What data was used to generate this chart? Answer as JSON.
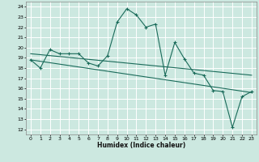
{
  "xlabel": "Humidex (Indice chaleur)",
  "xlim": [
    -0.5,
    23.5
  ],
  "ylim": [
    11.5,
    24.5
  ],
  "yticks": [
    12,
    13,
    14,
    15,
    16,
    17,
    18,
    19,
    20,
    21,
    22,
    23,
    24
  ],
  "xticks": [
    0,
    1,
    2,
    3,
    4,
    5,
    6,
    7,
    8,
    9,
    10,
    11,
    12,
    13,
    14,
    15,
    16,
    17,
    18,
    19,
    20,
    21,
    22,
    23
  ],
  "bg_color": "#cce8e0",
  "grid_color": "#ffffff",
  "line_color": "#1a6b5a",
  "main_series": {
    "x": [
      0,
      1,
      2,
      3,
      4,
      5,
      6,
      7,
      8,
      9,
      10,
      11,
      12,
      13,
      14,
      15,
      16,
      17,
      18,
      19,
      20,
      21,
      22,
      23
    ],
    "y": [
      18.8,
      18.0,
      19.8,
      19.4,
      19.4,
      19.4,
      18.5,
      18.2,
      19.2,
      22.5,
      23.8,
      23.2,
      22.0,
      22.3,
      17.3,
      20.5,
      18.9,
      17.5,
      17.3,
      15.8,
      15.7,
      12.2,
      15.2,
      15.7
    ]
  },
  "trend1": {
    "x": [
      0,
      23
    ],
    "y": [
      19.4,
      17.3
    ]
  },
  "trend2": {
    "x": [
      0,
      23
    ],
    "y": [
      18.8,
      15.6
    ]
  }
}
